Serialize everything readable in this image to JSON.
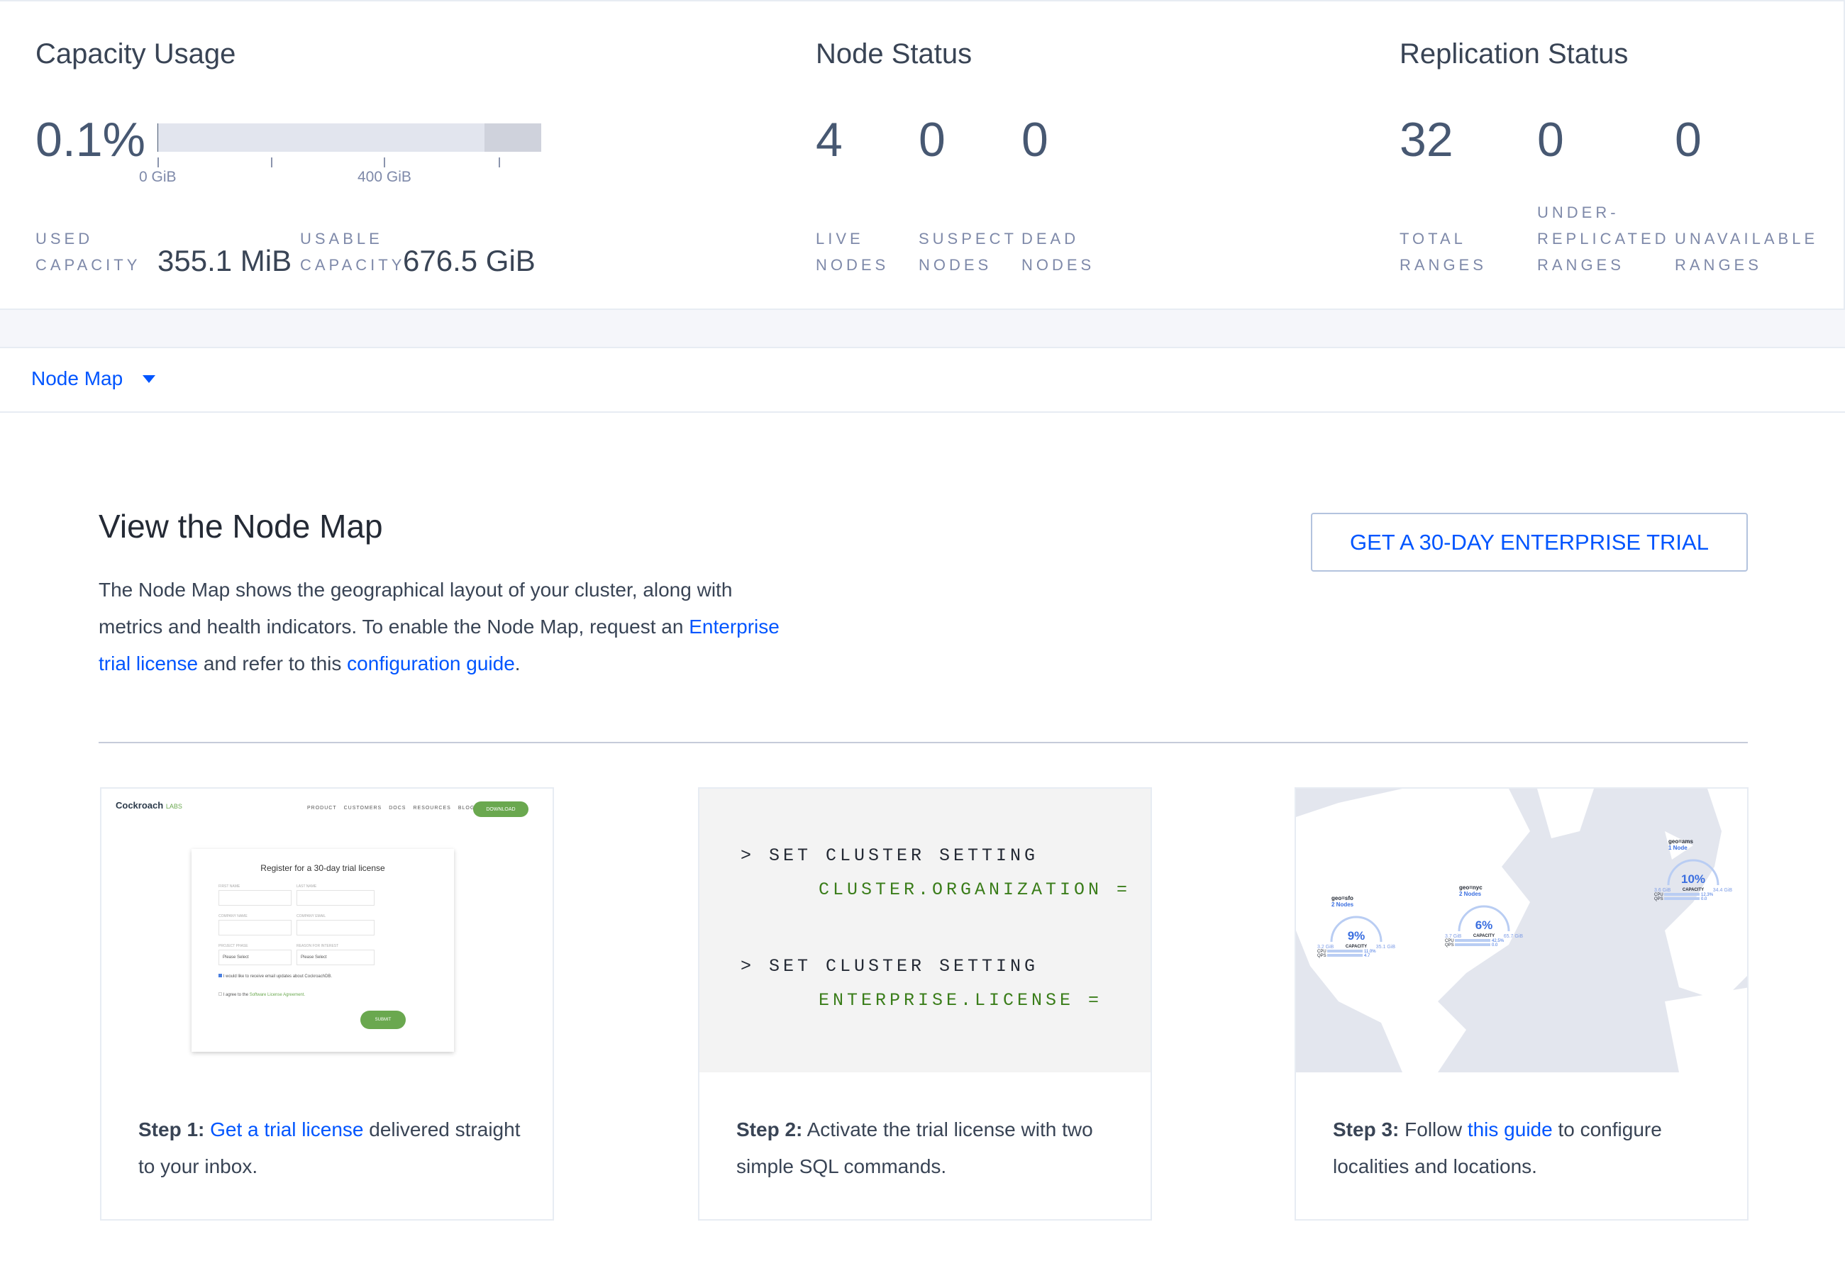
{
  "capacity": {
    "title": "Capacity Usage",
    "percent": "0.1%",
    "usage_fraction": 0.001,
    "ticks": [
      "0 GiB",
      "400 GiB"
    ],
    "used_label_1": "USED",
    "used_label_2": "CAPACITY",
    "used_value": "355.1 MiB",
    "usable_label_1": "USABLE",
    "usable_label_2": "CAPACITY",
    "usable_value": "676.5 GiB"
  },
  "node_status": {
    "title": "Node Status",
    "stats": [
      {
        "value": "4",
        "label1": "LIVE",
        "label2": "NODES"
      },
      {
        "value": "0",
        "label1": "SUSPECT",
        "label2": "NODES"
      },
      {
        "value": "0",
        "label1": "DEAD",
        "label2": "NODES"
      }
    ]
  },
  "replication": {
    "title": "Replication Status",
    "stats": [
      {
        "value": "32",
        "label1": "",
        "label2": "TOTAL",
        "label3": "RANGES"
      },
      {
        "value": "0",
        "label1": "UNDER-",
        "label2": "REPLICATED",
        "label3": "RANGES"
      },
      {
        "value": "0",
        "label1": "",
        "label2": "UNAVAILABLE",
        "label3": "RANGES"
      }
    ]
  },
  "dropdown": {
    "label": "Node Map",
    "icon": "caret-down-icon"
  },
  "main": {
    "title": "View the Node Map",
    "para_1": "The Node Map shows the geographical layout of your cluster, along with metrics and health indicators. To enable the Node Map, request an ",
    "link_1": "Enterprise trial license",
    "para_2": " and refer to this ",
    "link_2": "configuration guide",
    "para_3": ".",
    "trial_button": "GET A 30-DAY ENTERPRISE TRIAL"
  },
  "steps": [
    {
      "prefix": "Step 1:",
      "link": "Get a trial license",
      "text": " delivered straight to your inbox."
    },
    {
      "prefix": "Step 2:",
      "text": " Activate the trial license with two simple SQL commands."
    },
    {
      "prefix": "Step 3:",
      "pre": " Follow ",
      "link": "this guide",
      "text": " to configure localities and locations."
    }
  ],
  "sql": {
    "line1": "> SET CLUSTER SETTING",
    "line2": "CLUSTER.ORGANIZATION =",
    "line3": "> SET CLUSTER SETTING",
    "line4": "ENTERPRISE.LICENSE ="
  },
  "form_preview": {
    "logo": "Cockroach",
    "logo_suffix": "LABS",
    "nav": [
      "PRODUCT",
      "CUSTOMERS",
      "DOCS",
      "RESOURCES",
      "BLOG"
    ],
    "download": "DOWNLOAD",
    "heading": "Register for a 30-day trial license",
    "fields": [
      "FIRST NAME",
      "LAST NAME",
      "COMPANY NAME",
      "COMPANY EMAIL",
      "PROJECT PHASE",
      "REASON FOR INTEREST"
    ],
    "select_placeholder": "Please Select",
    "check1": "I would like to receive email updates about CockroachDB.",
    "check2": "I agree to the ",
    "check2_link": "Software License Agreement.",
    "submit": "SUBMIT"
  },
  "map_preview": {
    "localities": [
      {
        "name": "geo=sfo",
        "nodes": "2 Nodes",
        "pct": "9%",
        "cap": "CAPACITY",
        "used": "3.2 GiB",
        "total": "35.1 GiB",
        "cpu": "11.0%",
        "qps": "4.7",
        "status": "1"
      },
      {
        "name": "geo=nyc",
        "nodes": "2 Nodes",
        "pct": "6%",
        "cap": "CAPACITY",
        "used": "3.7 GiB",
        "total": "65.7 GiB",
        "cpu": "42.5%",
        "qps": "0.0",
        "status": "ok"
      },
      {
        "name": "geo=ams",
        "nodes": "1 Node",
        "pct": "10%",
        "cap": "CAPACITY",
        "used": "3.6 GiB",
        "total": "34.4 GiB",
        "cpu": "12.3%",
        "qps": "0.0",
        "status": "ok"
      }
    ],
    "cpu_label": "CPU",
    "qps_label": "QPS"
  },
  "colors": {
    "accent": "#0055ff",
    "text": "#394455",
    "label": "#7e89a9",
    "green": "#3a7d1a",
    "bar": "#e2e5ee"
  }
}
